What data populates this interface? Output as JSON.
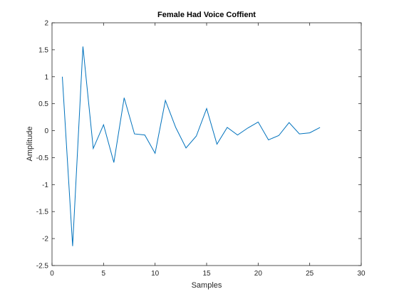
{
  "chart_data": {
    "type": "line",
    "title": "Female Had Voice Coffient",
    "xlabel": "Samples",
    "ylabel": "Amplitude",
    "xlim": [
      0,
      30
    ],
    "ylim": [
      -2.5,
      2
    ],
    "xticks": [
      0,
      5,
      10,
      15,
      20,
      25,
      30
    ],
    "yticks": [
      -2.5,
      -2,
      -1.5,
      -1,
      -0.5,
      0,
      0.5,
      1,
      1.5,
      2
    ],
    "grid": false,
    "colors": {
      "line": "#0072BD",
      "axis": "#262626",
      "background": "#ffffff"
    },
    "series": [
      {
        "x": [
          1,
          2,
          3,
          4,
          5,
          6,
          7,
          8,
          9,
          10,
          11,
          12,
          13,
          14,
          15,
          16,
          17,
          18,
          19,
          20,
          21,
          22,
          23,
          24,
          25,
          26
        ],
        "values": [
          1.0,
          -2.14,
          1.56,
          -0.33,
          0.11,
          -0.59,
          0.61,
          -0.06,
          -0.08,
          -0.42,
          0.56,
          0.06,
          -0.32,
          -0.1,
          0.41,
          -0.25,
          0.06,
          -0.08,
          0.05,
          0.16,
          -0.17,
          -0.09,
          0.15,
          -0.06,
          -0.04,
          0.06
        ]
      }
    ]
  }
}
